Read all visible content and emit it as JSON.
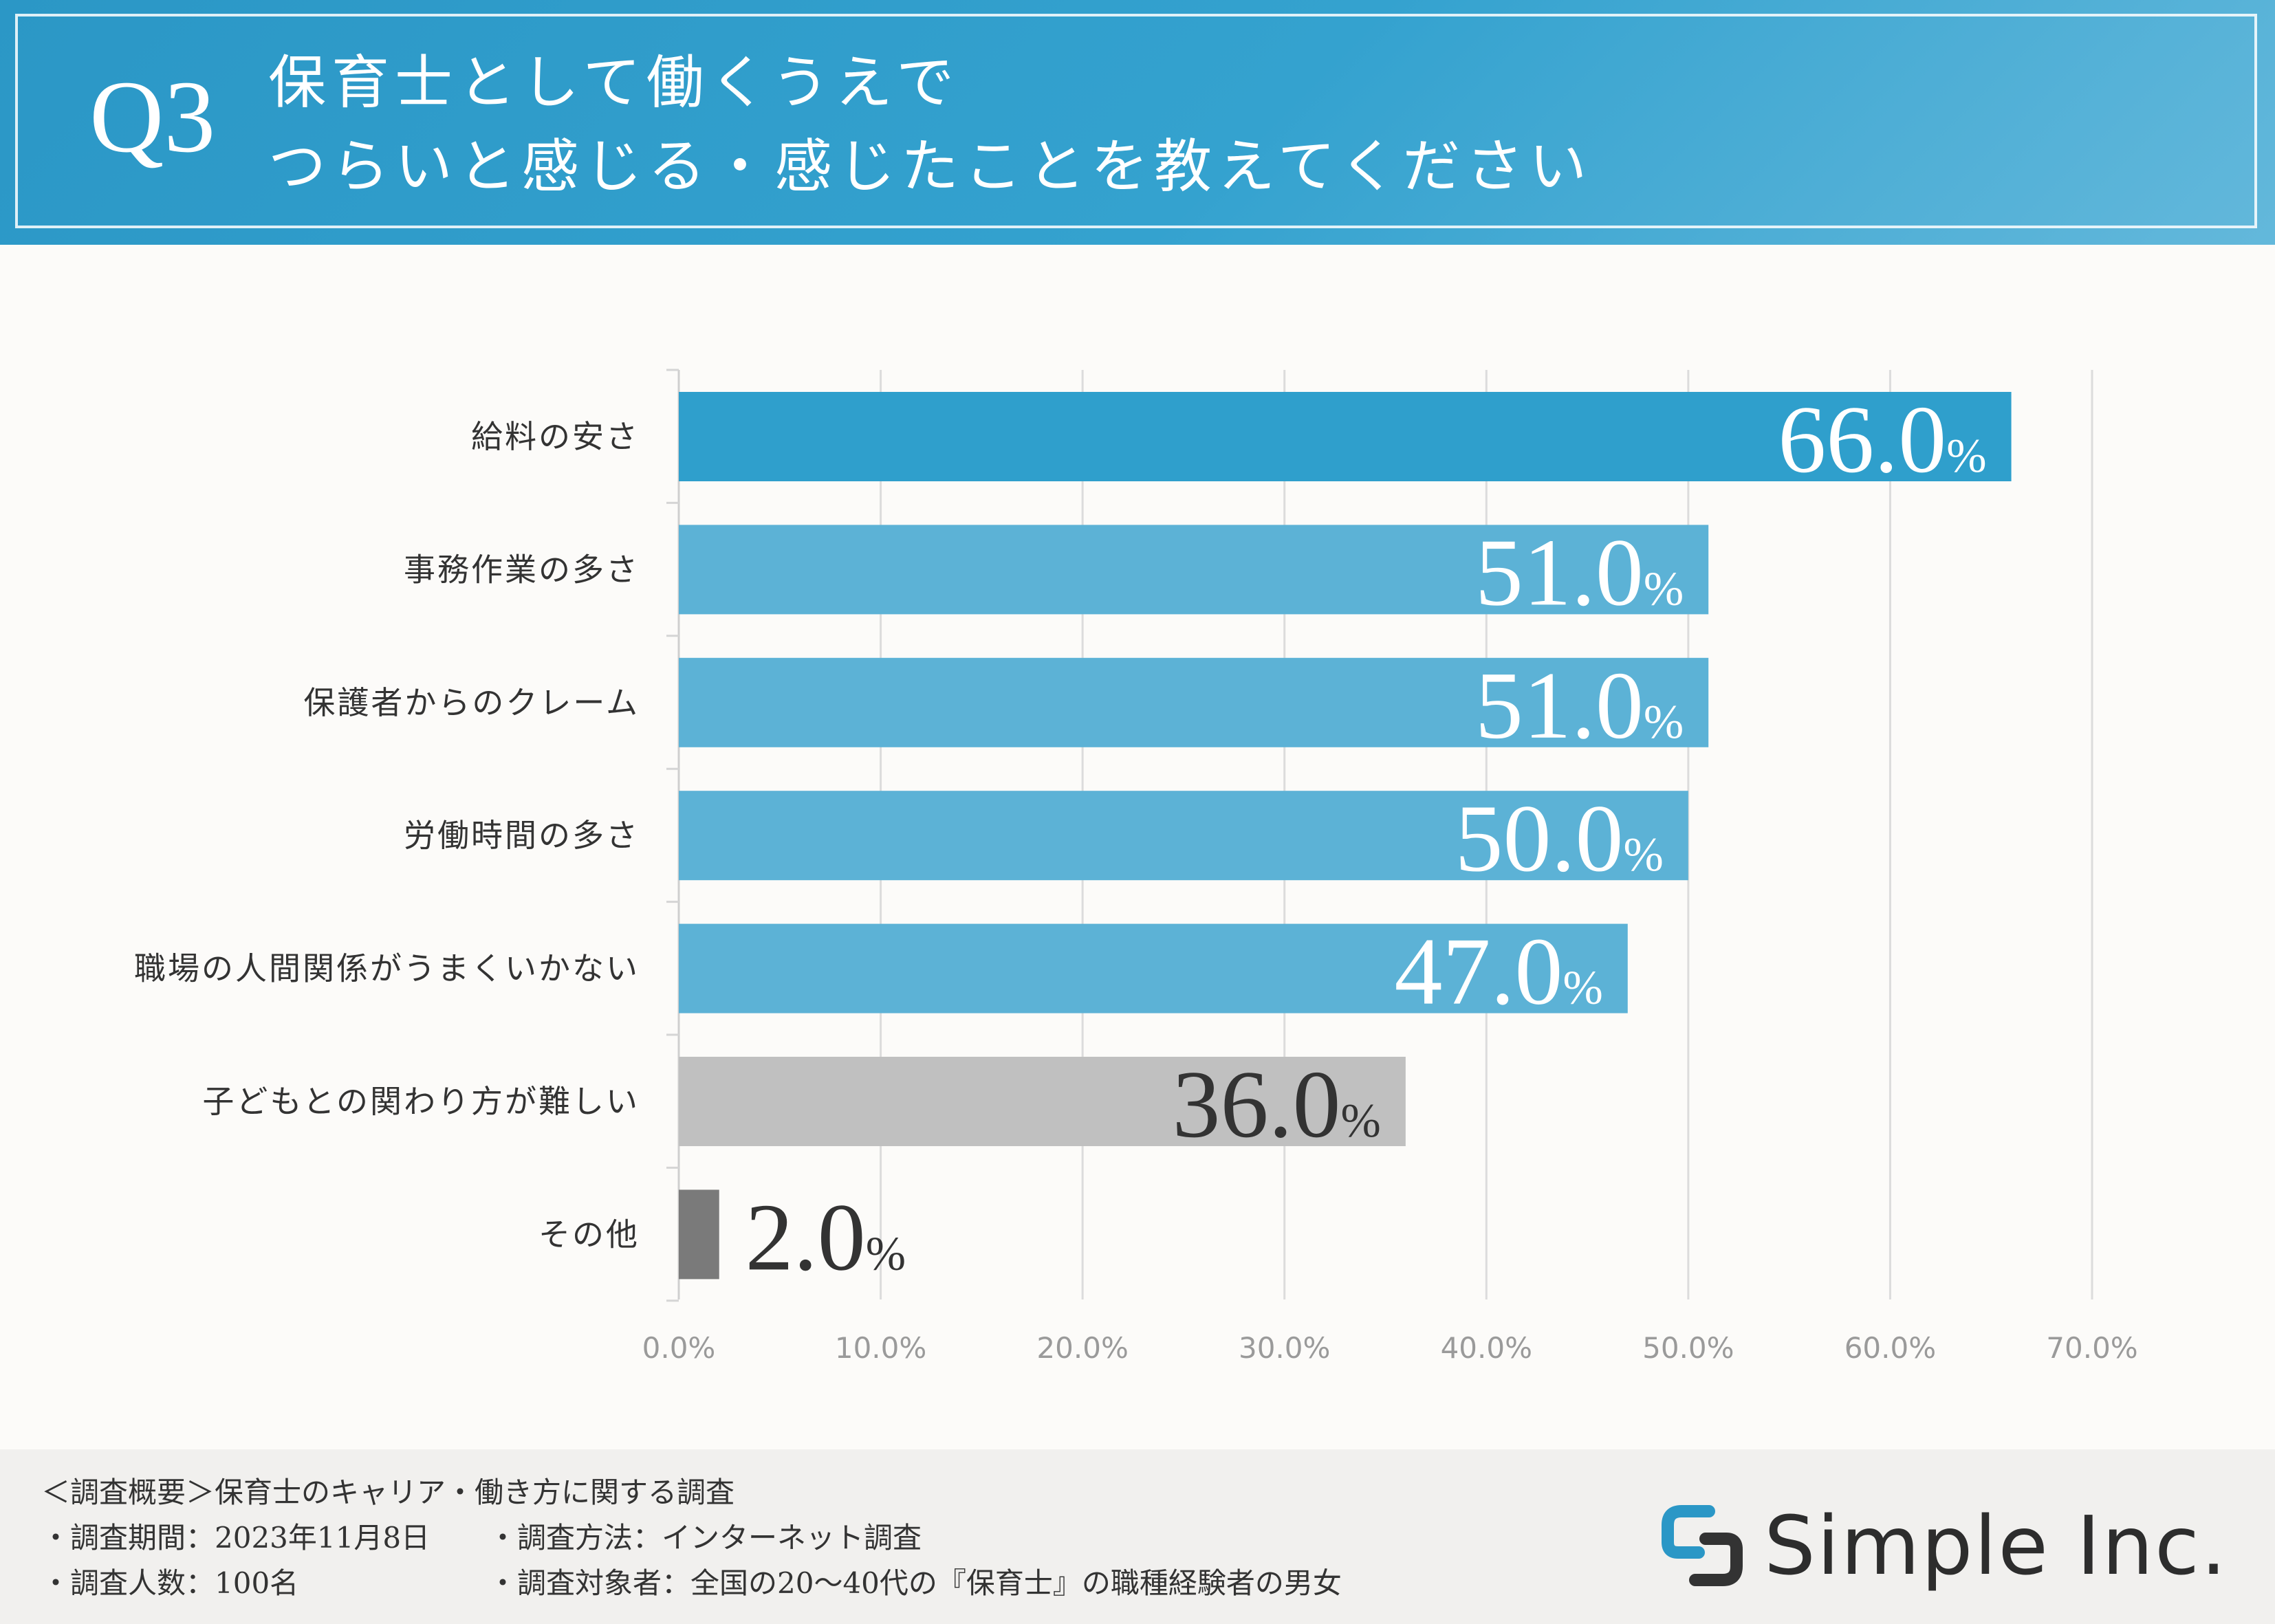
{
  "header": {
    "qnum": "Q3",
    "line1": "保育士として働くうえで",
    "line2": "つらいと感じる・感じたことを教えてください"
  },
  "colors": {
    "primary": "#2f9fcc",
    "secondary": "#5cb2d6",
    "gray": "#c0c0c0",
    "dark_gray": "#7a7a7a",
    "grid": "#dddddd"
  },
  "chart_data": {
    "type": "bar",
    "orientation": "horizontal",
    "categories": [
      "給料の安さ",
      "事務作業の多さ",
      "保護者からのクレーム",
      "労働時間の多さ",
      "職場の人間関係がうまくいかない",
      "子どもとの関わり方が難しい",
      "その他"
    ],
    "values": [
      66.0,
      51.0,
      51.0,
      50.0,
      47.0,
      36.0,
      2.0
    ],
    "value_labels": [
      "66.0",
      "51.0",
      "51.0",
      "50.0",
      "47.0",
      "36.0",
      "2.0"
    ],
    "unit": "%",
    "bar_colors": [
      "#2f9fcc",
      "#5cb2d6",
      "#5cb2d6",
      "#5cb2d6",
      "#5cb2d6",
      "#c0c0c0",
      "#7a7a7a"
    ],
    "xlim": [
      0,
      70
    ],
    "ticks": [
      0,
      10,
      20,
      30,
      40,
      50,
      60,
      70
    ],
    "tick_labels": [
      "0.0%",
      "10.0%",
      "20.0%",
      "30.0%",
      "40.0%",
      "50.0%",
      "60.0%",
      "70.0%"
    ],
    "grid": true
  },
  "footer": {
    "line1": "＜調査概要＞保育士のキャリア・働き方に関する調査",
    "period": "・調査期間：2023年11月8日",
    "method": "・調査方法：インターネット調査",
    "count": "・調査人数：100名",
    "target": "・調査対象者：全国の20～40代の『保育士』の職種経験者の男女"
  },
  "logo": {
    "text": "Simple Inc."
  }
}
